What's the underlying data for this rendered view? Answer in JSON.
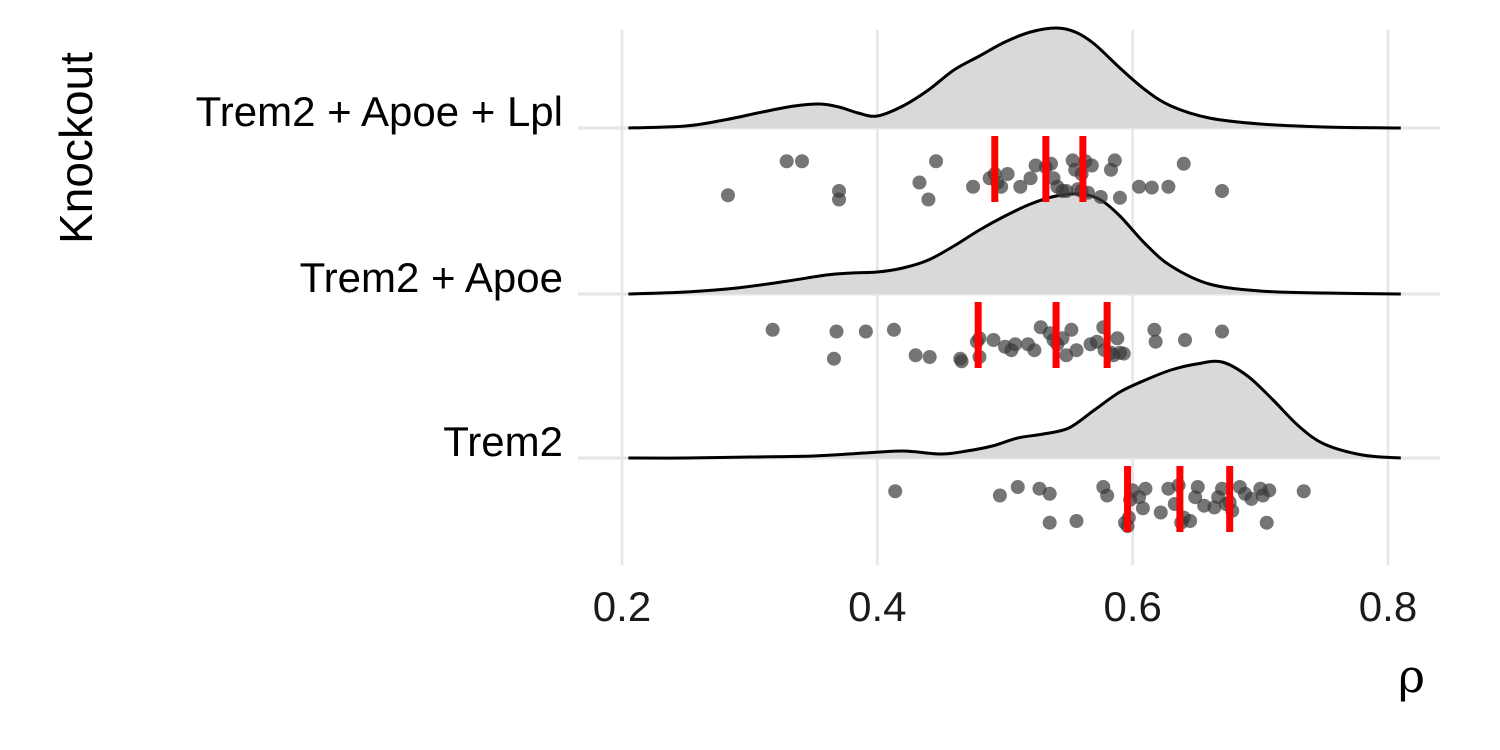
{
  "chart_data": {
    "type": "ridgeline",
    "xlabel": "ρ",
    "ylabel": "Knockout",
    "xlim": [
      0.18,
      0.82
    ],
    "xticks": [
      "0.2",
      "0.4",
      "0.6",
      "0.8"
    ],
    "xtick_values": [
      0.2,
      0.4,
      0.6,
      0.8
    ],
    "grid": true,
    "colors": {
      "density_fill": "#d9d9d9",
      "density_line": "#000000",
      "points": "#3a3a3a",
      "quantiles": "#ff0000",
      "grid": "#e6e6e6"
    },
    "series": [
      {
        "name": "Trem2 + Apoe + Lpl",
        "quantiles": [
          0.492,
          0.532,
          0.561
        ],
        "density_x": [
          0.205,
          0.25,
          0.28,
          0.31,
          0.335,
          0.355,
          0.37,
          0.385,
          0.4,
          0.42,
          0.44,
          0.46,
          0.48,
          0.5,
          0.52,
          0.54,
          0.555,
          0.57,
          0.59,
          0.61,
          0.63,
          0.66,
          0.7,
          0.75,
          0.81
        ],
        "density_y": [
          0.0,
          0.02,
          0.08,
          0.16,
          0.22,
          0.24,
          0.21,
          0.15,
          0.12,
          0.22,
          0.38,
          0.58,
          0.72,
          0.86,
          0.96,
          1.0,
          0.96,
          0.84,
          0.6,
          0.38,
          0.22,
          0.1,
          0.04,
          0.01,
          0.0
        ],
        "points": [
          [
            0.283,
            0.35
          ],
          [
            0.329,
            0.75
          ],
          [
            0.341,
            0.75
          ],
          [
            0.37,
            0.4
          ],
          [
            0.37,
            0.3
          ],
          [
            0.433,
            0.5
          ],
          [
            0.44,
            0.3
          ],
          [
            0.446,
            0.75
          ],
          [
            0.475,
            0.45
          ],
          [
            0.488,
            0.55
          ],
          [
            0.492,
            0.6
          ],
          [
            0.494,
            0.5
          ],
          [
            0.497,
            0.45
          ],
          [
            0.502,
            0.6
          ],
          [
            0.512,
            0.45
          ],
          [
            0.52,
            0.55
          ],
          [
            0.524,
            0.7
          ],
          [
            0.532,
            0.68
          ],
          [
            0.536,
            0.72
          ],
          [
            0.538,
            0.55
          ],
          [
            0.541,
            0.45
          ],
          [
            0.545,
            0.4
          ],
          [
            0.548,
            0.4
          ],
          [
            0.553,
            0.76
          ],
          [
            0.555,
            0.65
          ],
          [
            0.557,
            0.42
          ],
          [
            0.56,
            0.4
          ],
          [
            0.56,
            0.6
          ],
          [
            0.563,
            0.75
          ],
          [
            0.565,
            0.38
          ],
          [
            0.568,
            0.7
          ],
          [
            0.575,
            0.33
          ],
          [
            0.583,
            0.65
          ],
          [
            0.586,
            0.76
          ],
          [
            0.59,
            0.32
          ],
          [
            0.605,
            0.45
          ],
          [
            0.615,
            0.44
          ],
          [
            0.628,
            0.45
          ],
          [
            0.64,
            0.72
          ],
          [
            0.67,
            0.4
          ]
        ]
      },
      {
        "name": "Trem2 + Apoe",
        "quantiles": [
          0.479,
          0.54,
          0.58
        ],
        "density_x": [
          0.205,
          0.25,
          0.29,
          0.33,
          0.36,
          0.38,
          0.4,
          0.42,
          0.44,
          0.46,
          0.48,
          0.5,
          0.52,
          0.54,
          0.56,
          0.575,
          0.59,
          0.61,
          0.63,
          0.66,
          0.7,
          0.75,
          0.81
        ],
        "density_y": [
          0.0,
          0.02,
          0.06,
          0.13,
          0.19,
          0.21,
          0.22,
          0.26,
          0.34,
          0.48,
          0.64,
          0.78,
          0.9,
          0.98,
          1.0,
          0.94,
          0.78,
          0.5,
          0.28,
          0.1,
          0.03,
          0.01,
          0.0
        ],
        "points": [
          [
            0.318,
            0.72
          ],
          [
            0.366,
            0.38
          ],
          [
            0.368,
            0.7
          ],
          [
            0.391,
            0.7
          ],
          [
            0.413,
            0.72
          ],
          [
            0.43,
            0.42
          ],
          [
            0.441,
            0.4
          ],
          [
            0.465,
            0.38
          ],
          [
            0.466,
            0.35
          ],
          [
            0.478,
            0.58
          ],
          [
            0.48,
            0.62
          ],
          [
            0.48,
            0.4
          ],
          [
            0.491,
            0.6
          ],
          [
            0.5,
            0.52
          ],
          [
            0.505,
            0.48
          ],
          [
            0.508,
            0.55
          ],
          [
            0.518,
            0.55
          ],
          [
            0.523,
            0.48
          ],
          [
            0.528,
            0.75
          ],
          [
            0.535,
            0.68
          ],
          [
            0.538,
            0.6
          ],
          [
            0.541,
            0.55
          ],
          [
            0.545,
            0.62
          ],
          [
            0.548,
            0.42
          ],
          [
            0.552,
            0.72
          ],
          [
            0.556,
            0.48
          ],
          [
            0.567,
            0.55
          ],
          [
            0.572,
            0.58
          ],
          [
            0.577,
            0.75
          ],
          [
            0.578,
            0.48
          ],
          [
            0.583,
            0.45
          ],
          [
            0.585,
            0.42
          ],
          [
            0.588,
            0.62
          ],
          [
            0.59,
            0.45
          ],
          [
            0.593,
            0.44
          ],
          [
            0.617,
            0.72
          ],
          [
            0.618,
            0.58
          ],
          [
            0.641,
            0.6
          ],
          [
            0.67,
            0.7
          ]
        ]
      },
      {
        "name": "Trem2",
        "quantiles": [
          0.596,
          0.637,
          0.676
        ],
        "density_x": [
          0.205,
          0.25,
          0.3,
          0.35,
          0.39,
          0.42,
          0.45,
          0.47,
          0.49,
          0.51,
          0.53,
          0.55,
          0.57,
          0.59,
          0.61,
          0.63,
          0.65,
          0.67,
          0.69,
          0.71,
          0.73,
          0.75,
          0.78,
          0.81
        ],
        "density_y": [
          0.0,
          0.0,
          0.01,
          0.02,
          0.05,
          0.07,
          0.04,
          0.07,
          0.12,
          0.2,
          0.24,
          0.3,
          0.48,
          0.66,
          0.78,
          0.88,
          0.94,
          0.96,
          0.82,
          0.58,
          0.32,
          0.14,
          0.03,
          0.0
        ],
        "points": [
          [
            0.414,
            0.75
          ],
          [
            0.496,
            0.7
          ],
          [
            0.51,
            0.8
          ],
          [
            0.527,
            0.78
          ],
          [
            0.535,
            0.38
          ],
          [
            0.535,
            0.72
          ],
          [
            0.556,
            0.4
          ],
          [
            0.577,
            0.8
          ],
          [
            0.58,
            0.7
          ],
          [
            0.594,
            0.38
          ],
          [
            0.596,
            0.34
          ],
          [
            0.597,
            0.44
          ],
          [
            0.598,
            0.65
          ],
          [
            0.6,
            0.76
          ],
          [
            0.605,
            0.68
          ],
          [
            0.608,
            0.55
          ],
          [
            0.61,
            0.78
          ],
          [
            0.622,
            0.5
          ],
          [
            0.628,
            0.78
          ],
          [
            0.633,
            0.6
          ],
          [
            0.636,
            0.82
          ],
          [
            0.638,
            0.38
          ],
          [
            0.64,
            0.44
          ],
          [
            0.645,
            0.4
          ],
          [
            0.649,
            0.68
          ],
          [
            0.651,
            0.8
          ],
          [
            0.656,
            0.58
          ],
          [
            0.664,
            0.56
          ],
          [
            0.667,
            0.68
          ],
          [
            0.67,
            0.78
          ],
          [
            0.673,
            0.6
          ],
          [
            0.676,
            0.62
          ],
          [
            0.678,
            0.52
          ],
          [
            0.684,
            0.8
          ],
          [
            0.688,
            0.72
          ],
          [
            0.693,
            0.66
          ],
          [
            0.7,
            0.78
          ],
          [
            0.702,
            0.7
          ],
          [
            0.705,
            0.38
          ],
          [
            0.707,
            0.76
          ],
          [
            0.734,
            0.75
          ]
        ]
      }
    ]
  }
}
